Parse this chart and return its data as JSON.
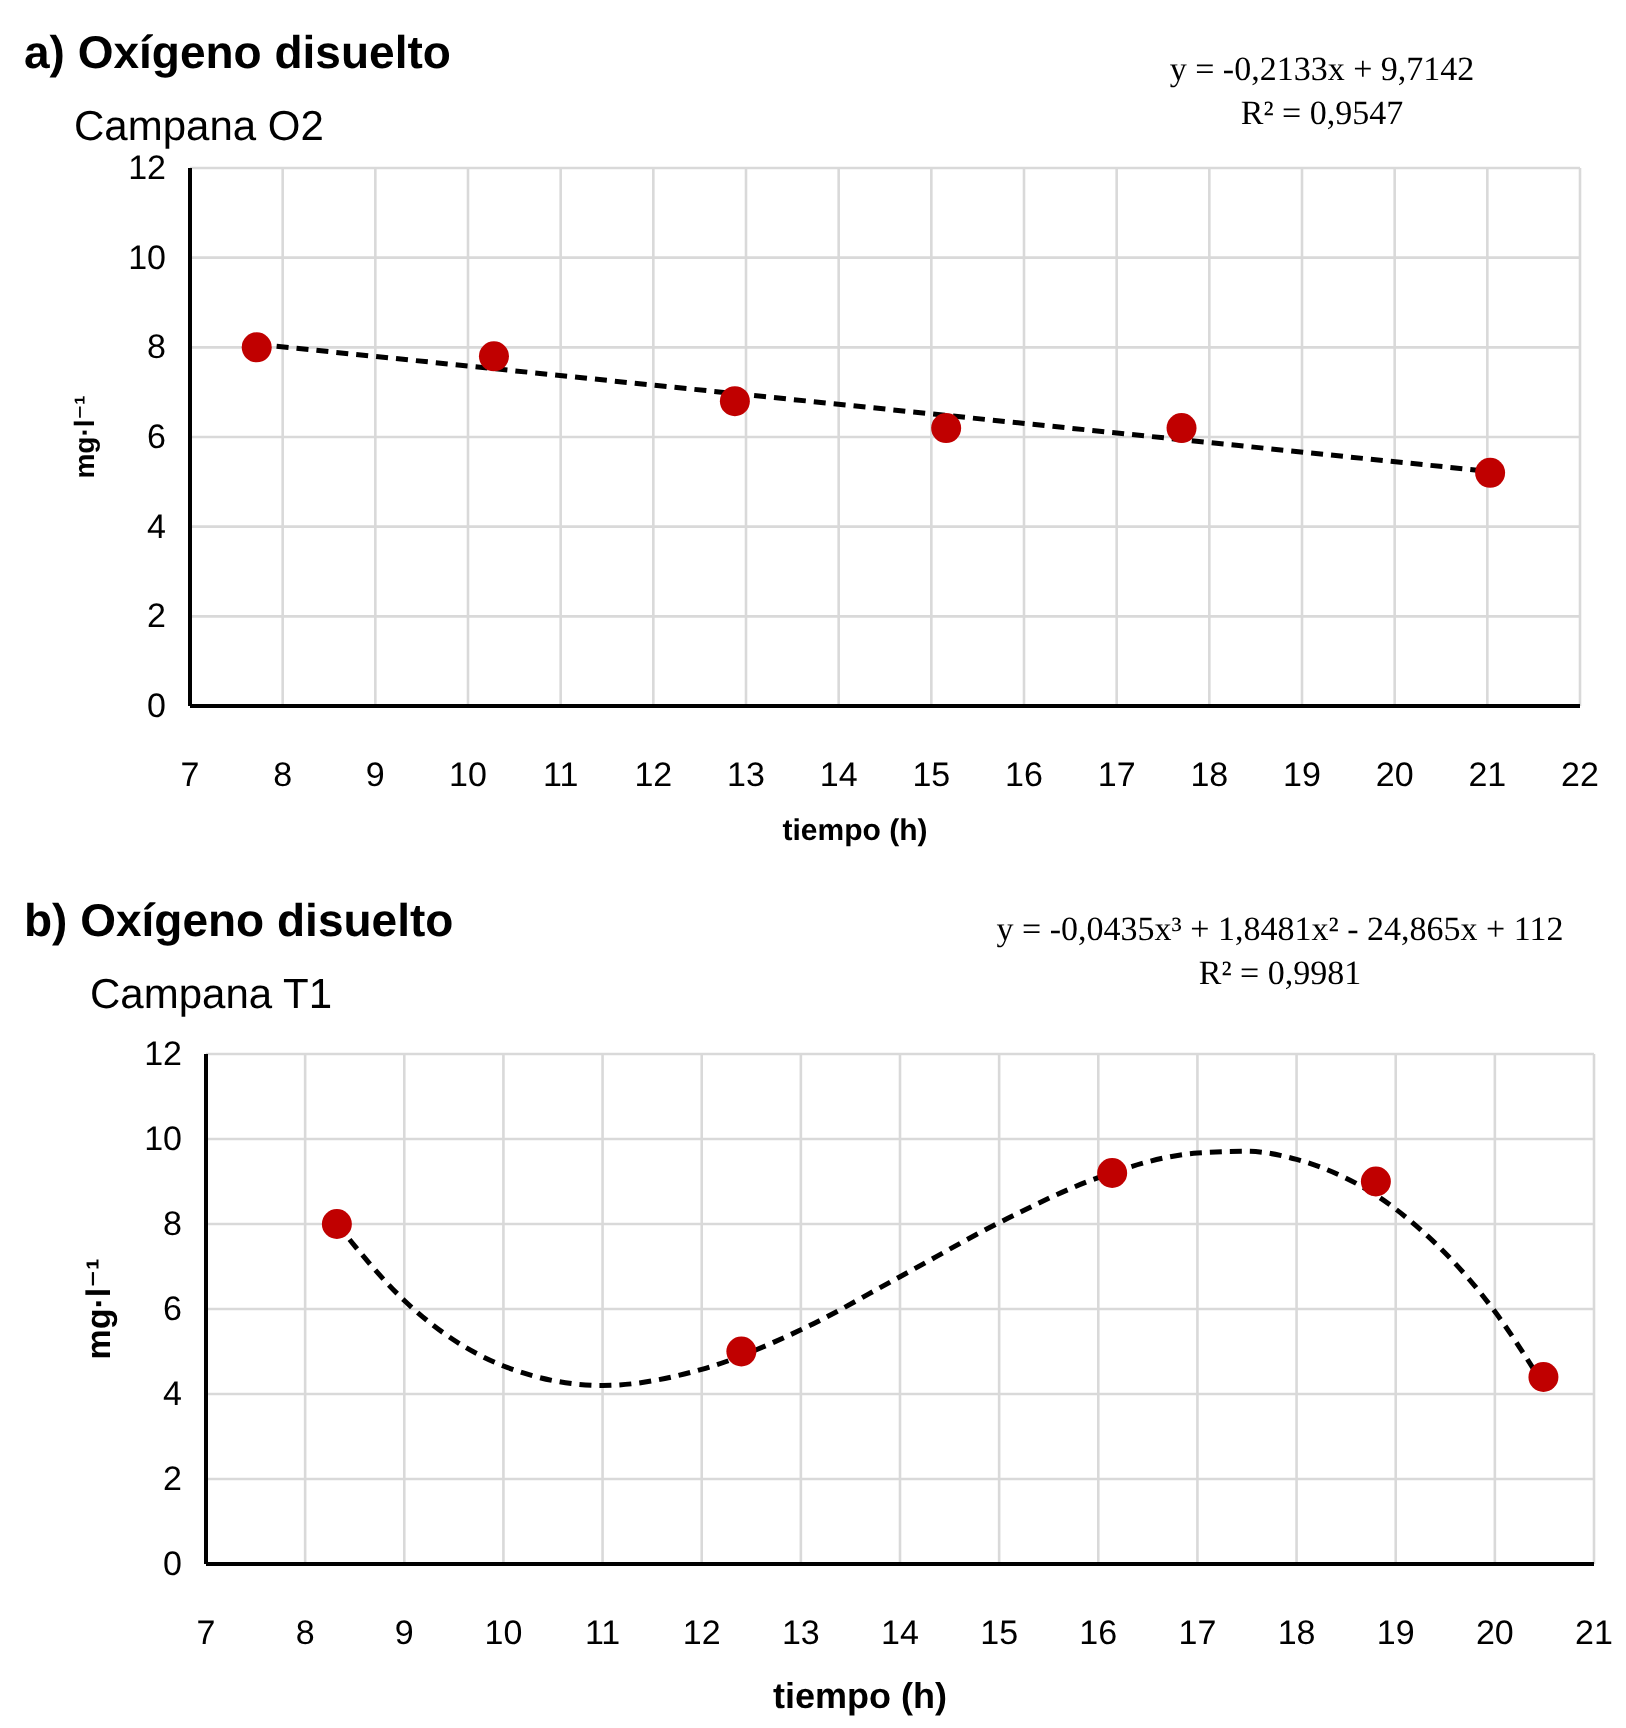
{
  "chart_data": [
    {
      "type": "scatter",
      "title": "a) Oxígeno disuelto",
      "subtitle": "Campana O2",
      "xlabel": "tiempo (h)",
      "ylabel": "mg·l⁻¹",
      "annotations": [
        "y = -0,2133x + 9,7142",
        "R² = 0,9547"
      ],
      "xlim": [
        7,
        22
      ],
      "xticks": [
        7,
        8,
        9,
        10,
        11,
        12,
        13,
        14,
        15,
        16,
        17,
        18,
        19,
        20,
        21,
        22
      ],
      "ylim": [
        0,
        12
      ],
      "yticks": [
        0,
        2,
        4,
        6,
        8,
        10,
        12
      ],
      "grid": true,
      "series": [
        {
          "color": "#c00000",
          "marker": "circle",
          "x": [
            7.72,
            10.28,
            12.88,
            15.16,
            17.7,
            21.03
          ],
          "values": [
            8.0,
            7.8,
            6.8,
            6.2,
            6.2,
            5.2
          ]
        },
        {
          "type": "line",
          "color": "#000000",
          "line_style": "dashed",
          "marker": "none",
          "x": [
            7.72,
            21.03
          ],
          "values": [
            8.07,
            5.23
          ]
        }
      ]
    },
    {
      "type": "scatter",
      "title": "b) Oxígeno disuelto",
      "subtitle": "Campana T1",
      "xlabel": "tiempo (h)",
      "ylabel": "mg·l⁻¹",
      "annotations": [
        "y = -0,0435x³ + 1,8481x² - 24,865x + 112",
        "R² = 0,9981"
      ],
      "xlim": [
        7,
        21
      ],
      "xticks": [
        7,
        8,
        9,
        10,
        11,
        12,
        13,
        14,
        15,
        16,
        17,
        18,
        19,
        20,
        21
      ],
      "ylim": [
        0,
        12
      ],
      "yticks": [
        0,
        2,
        4,
        6,
        8,
        10,
        12
      ],
      "grid": true,
      "series": [
        {
          "color": "#c00000",
          "marker": "circle",
          "x": [
            8.32,
            12.4,
            16.14,
            18.8,
            20.49
          ],
          "values": [
            8.0,
            5.0,
            9.2,
            9.0,
            4.4
          ]
        },
        {
          "type": "line",
          "color": "#000000",
          "line_style": "dashed",
          "marker": "none",
          "x": [
            8.32,
            9,
            10,
            11,
            12,
            13,
            14,
            15,
            16,
            17,
            17.5,
            18,
            19,
            20,
            20.49
          ],
          "values": [
            8.0,
            6.2,
            4.66,
            4.2,
            4.58,
            5.51,
            6.76,
            8.03,
            9.09,
            9.67,
            9.71,
            9.52,
            8.35,
            5.94,
            4.22
          ]
        }
      ]
    }
  ]
}
